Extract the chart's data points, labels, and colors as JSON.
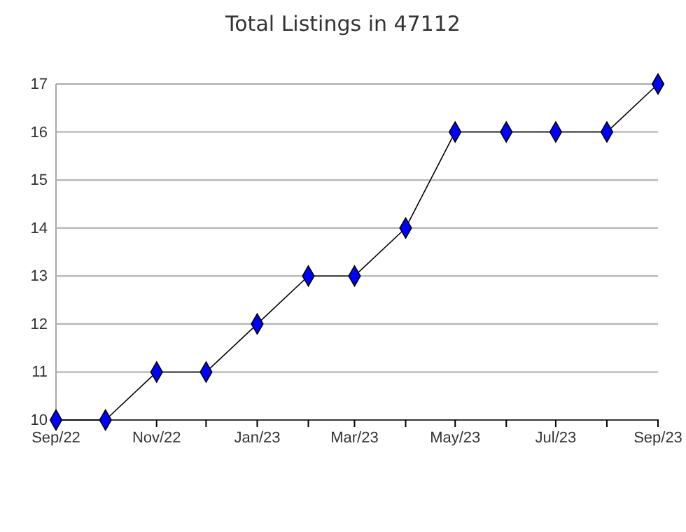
{
  "chart_data": {
    "type": "line",
    "title": "Total Listings in 47112",
    "x": [
      "2022-09",
      "2022-10",
      "2022-11",
      "2022-12",
      "2023-01",
      "2023-02",
      "2023-03",
      "2023-04",
      "2023-05",
      "2023-06",
      "2023-07",
      "2023-08",
      "2023-09"
    ],
    "series": [
      {
        "color": "#0000ff",
        "values": [
          10,
          10,
          11,
          11,
          12,
          13,
          13,
          14,
          16,
          16,
          16,
          16,
          17
        ]
      }
    ],
    "xlim": [
      "2022-09",
      "2023-09"
    ],
    "xticks": [
      {
        "value": "2022-09",
        "label": "Sep/22"
      },
      {
        "value": "2022-10",
        "label": null
      },
      {
        "value": "2022-11",
        "label": "Nov/22"
      },
      {
        "value": "2022-12",
        "label": null
      },
      {
        "value": "2023-01",
        "label": "Jan/23"
      },
      {
        "value": "2023-02",
        "label": null
      },
      {
        "value": "2023-03",
        "label": "Mar/23"
      },
      {
        "value": "2023-04",
        "label": null
      },
      {
        "value": "2023-05",
        "label": "May/23"
      },
      {
        "value": "2023-06",
        "label": null
      },
      {
        "value": "2023-07",
        "label": "Jul/23"
      },
      {
        "value": "2023-08",
        "label": null
      },
      {
        "value": "2023-09",
        "label": "Sep/23"
      }
    ],
    "ylim": [
      10,
      17
    ],
    "yticks": [
      10,
      11,
      12,
      13,
      14,
      15,
      16,
      17
    ],
    "grid": "y",
    "marker": "diamond",
    "line_style": "solid"
  }
}
